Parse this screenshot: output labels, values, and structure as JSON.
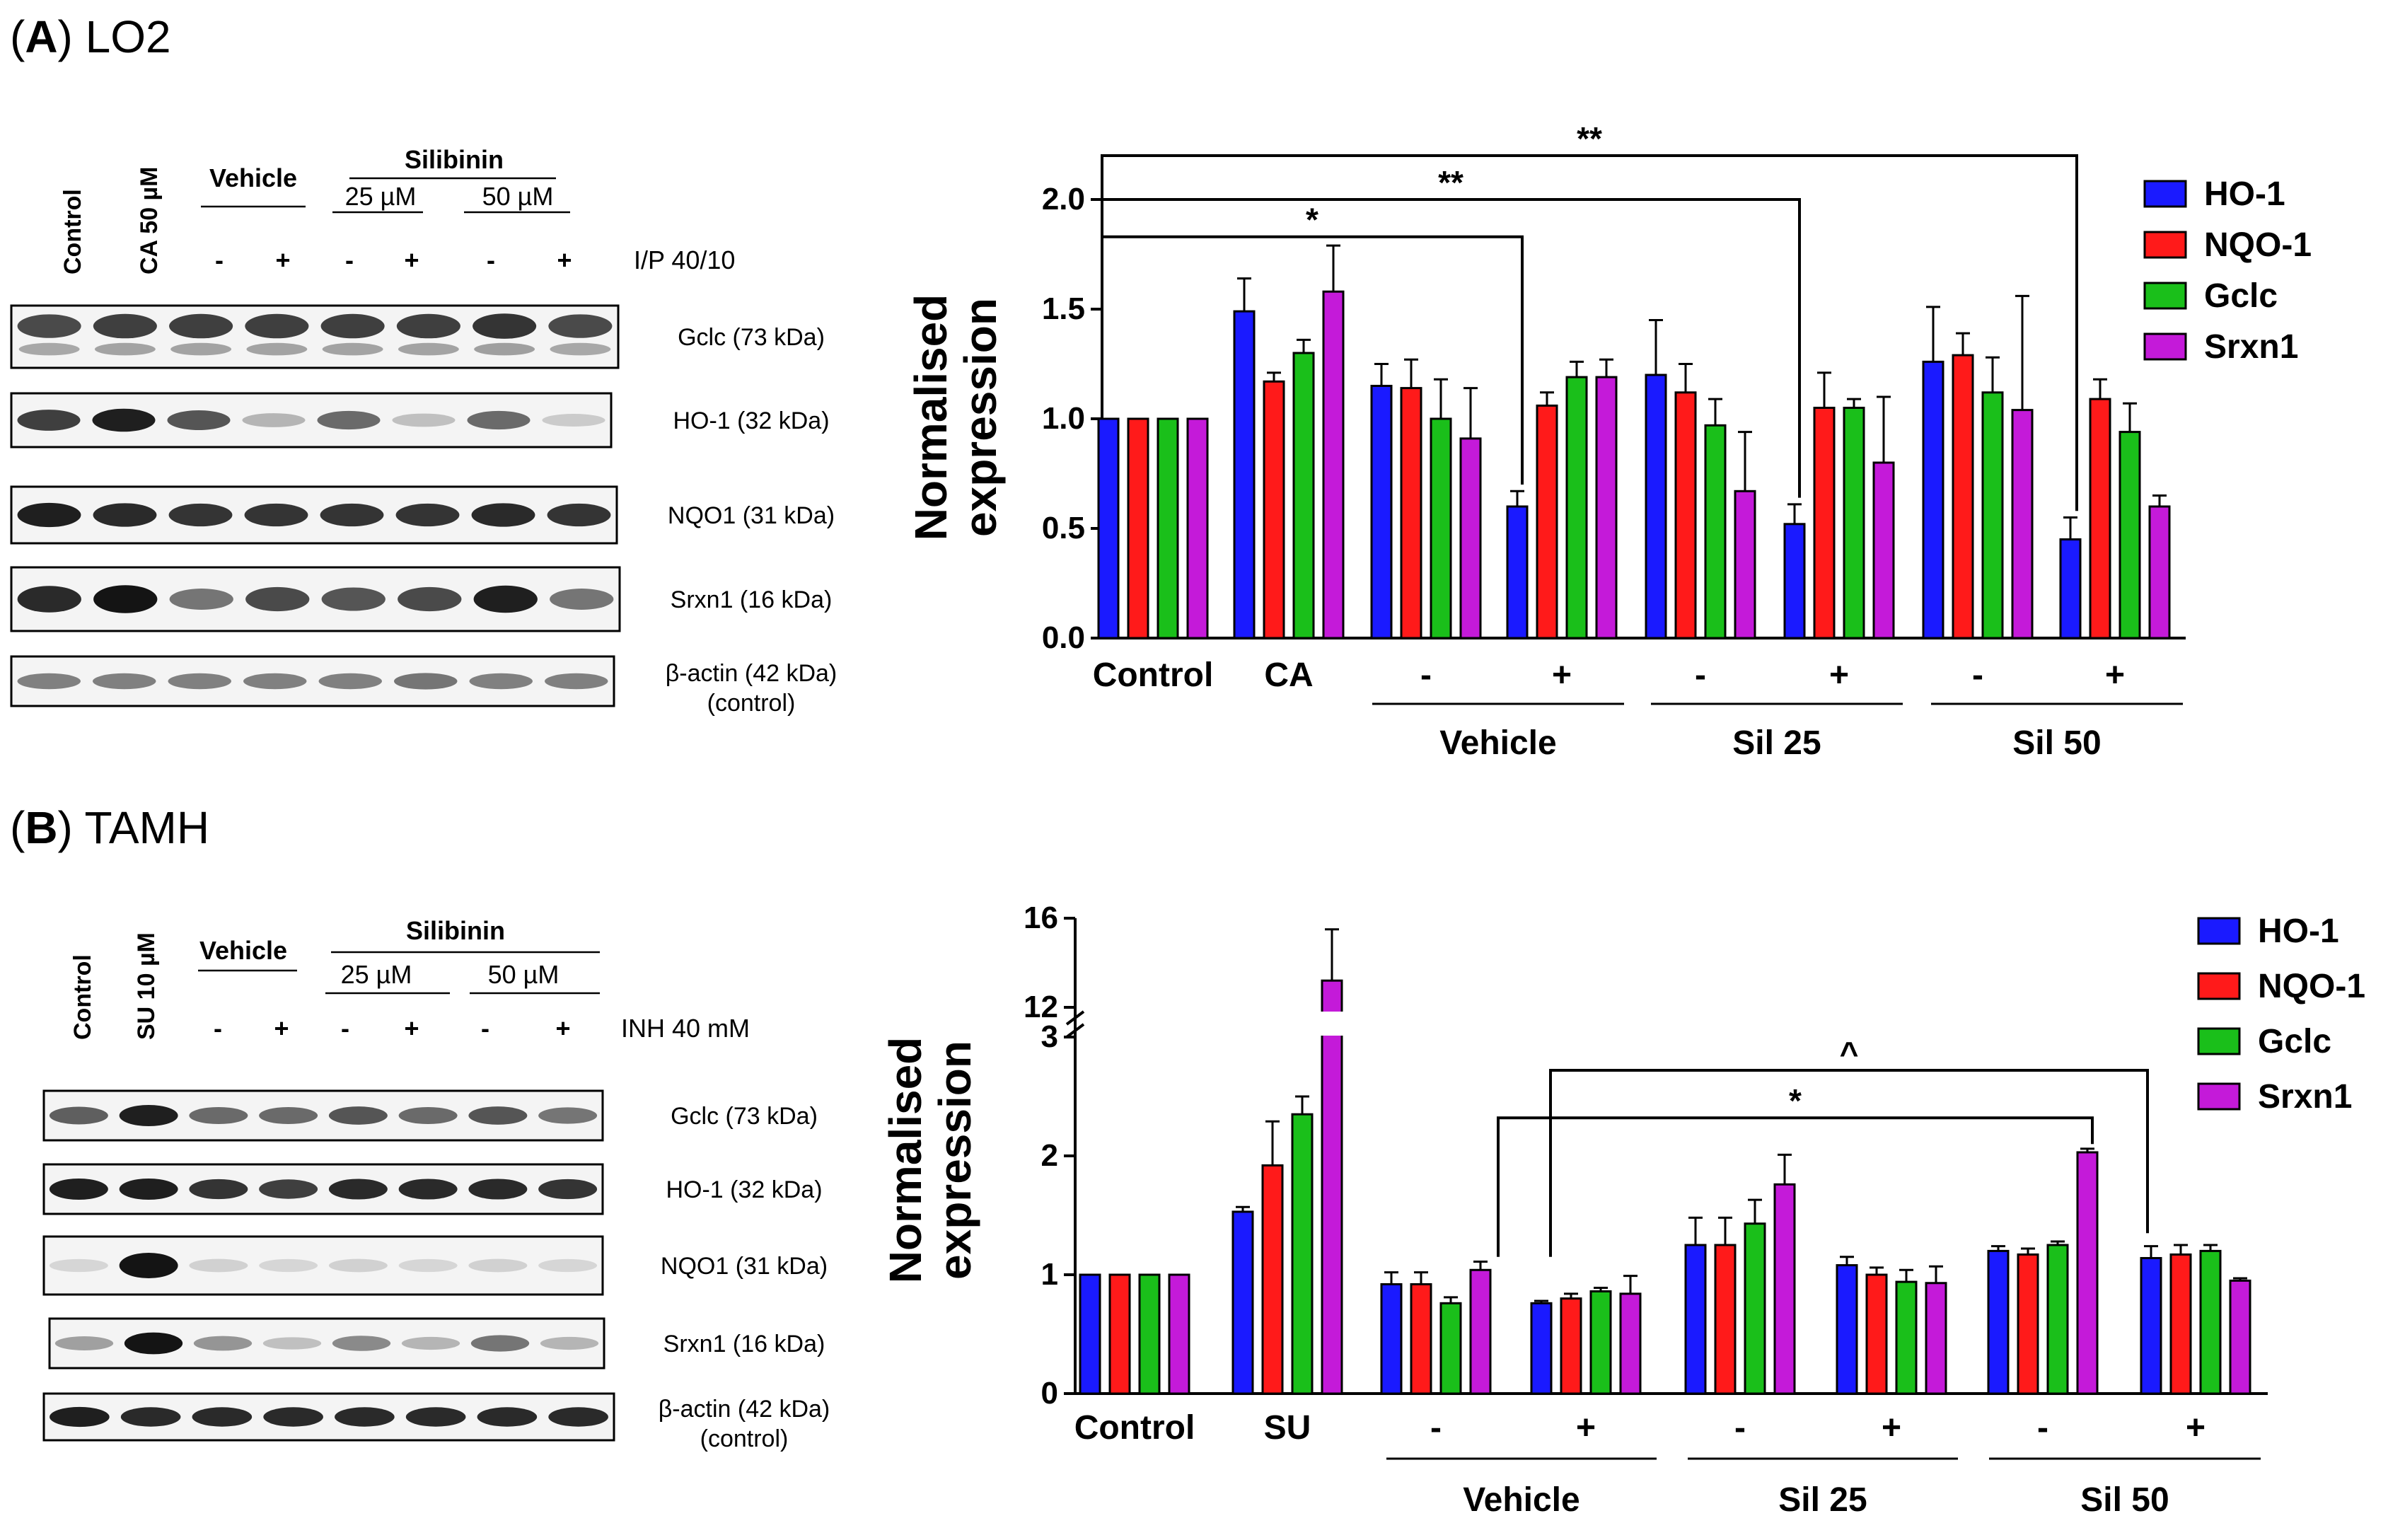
{
  "panels": {
    "a": {
      "letter": "A",
      "cell": "LO2",
      "blot": {
        "lanes": [
          "Control",
          "CA 50 µM"
        ],
        "vehicle": "Vehicle",
        "silibinin": "Silibinin",
        "dose1": "25 µM",
        "dose2": "50 µM",
        "signs": [
          "-",
          "+",
          "-",
          "+",
          "-",
          "+"
        ],
        "treatment": "I/P 40/10",
        "bands": [
          {
            "name": "Gclc (73 kDa)",
            "intensity": [
              0.75,
              0.8,
              0.8,
              0.8,
              0.8,
              0.8,
              0.85,
              0.75
            ],
            "sub": "",
            "second": true
          },
          {
            "name": "HO-1 (32 kDa)",
            "intensity": [
              0.8,
              0.95,
              0.7,
              0.25,
              0.6,
              0.2,
              0.6,
              0.15
            ],
            "sub": "",
            "second": false
          },
          {
            "name": "NQO1 (31 kDa)",
            "intensity": [
              0.95,
              0.9,
              0.85,
              0.85,
              0.85,
              0.85,
              0.9,
              0.85
            ],
            "sub": "",
            "second": false
          },
          {
            "name": "Srxn1 (16 kDa)",
            "intensity": [
              0.9,
              1.0,
              0.55,
              0.75,
              0.7,
              0.75,
              0.95,
              0.55
            ],
            "sub": "",
            "second": false
          },
          {
            "name": "β-actin (42 kDa)",
            "intensity": [
              0.5,
              0.5,
              0.5,
              0.5,
              0.5,
              0.55,
              0.5,
              0.5
            ],
            "sub": "(control)",
            "second": false
          }
        ]
      }
    },
    "b": {
      "letter": "B",
      "cell": "TAMH",
      "blot": {
        "lanes": [
          "Control",
          "SU 10 µM"
        ],
        "vehicle": "Vehicle",
        "silibinin": "Silibinin",
        "dose1": "25 µM",
        "dose2": "50 µM",
        "signs": [
          "-",
          "+",
          "-",
          "+",
          "-",
          "+"
        ],
        "treatment": "INH 40 mM",
        "bands": [
          {
            "name": "Gclc (73 kDa)",
            "intensity": [
              0.65,
              0.95,
              0.6,
              0.6,
              0.7,
              0.6,
              0.7,
              0.55
            ],
            "sub": "",
            "second": false
          },
          {
            "name": "HO-1 (32 kDa)",
            "intensity": [
              0.95,
              0.95,
              0.85,
              0.8,
              0.9,
              0.9,
              0.9,
              0.85
            ],
            "sub": "",
            "second": false
          },
          {
            "name": "NQO1 (31 kDa)",
            "intensity": [
              0.1,
              1.0,
              0.12,
              0.1,
              0.12,
              0.1,
              0.12,
              0.1
            ],
            "sub": "",
            "second": false
          },
          {
            "name": "Srxn1 (16 kDa)",
            "intensity": [
              0.35,
              1.0,
              0.4,
              0.2,
              0.45,
              0.25,
              0.55,
              0.25
            ],
            "sub": "",
            "second": false
          },
          {
            "name": "β-actin (42 kDa)",
            "intensity": [
              0.95,
              0.9,
              0.9,
              0.9,
              0.9,
              0.9,
              0.9,
              0.9
            ],
            "sub": "(control)",
            "second": false
          }
        ]
      }
    }
  },
  "chart_data": [
    {
      "type": "bar",
      "title": "(A) LO2",
      "xlabel": "",
      "ylabel": "Normalised expression",
      "ylim": [
        0,
        2.0
      ],
      "yticks": [
        "0.0",
        "0.5",
        "1.0",
        "1.5",
        "2.0"
      ],
      "categories": [
        "Control",
        "CA",
        "-",
        "+",
        "-",
        "+",
        "-",
        "+"
      ],
      "groups": [
        "Vehicle",
        "Sil 25",
        "Sil 50"
      ],
      "series": [
        {
          "name": "HO-1",
          "color": "#1a1aff",
          "values": [
            1.0,
            1.49,
            1.15,
            0.6,
            1.2,
            0.52,
            1.26,
            0.45
          ],
          "errors": [
            0,
            0.15,
            0.1,
            0.07,
            0.25,
            0.09,
            0.25,
            0.1
          ]
        },
        {
          "name": "NQO-1",
          "color": "#ff1a1a",
          "values": [
            1.0,
            1.17,
            1.14,
            1.06,
            1.12,
            1.05,
            1.29,
            1.09
          ],
          "errors": [
            0,
            0.04,
            0.13,
            0.06,
            0.13,
            0.16,
            0.1,
            0.09
          ]
        },
        {
          "name": "Gclc",
          "color": "#1abf1a",
          "values": [
            1.0,
            1.3,
            1.0,
            1.19,
            0.97,
            1.05,
            1.12,
            0.94
          ],
          "errors": [
            0,
            0.06,
            0.18,
            0.07,
            0.12,
            0.04,
            0.16,
            0.13
          ]
        },
        {
          "name": "Srxn1",
          "color": "#c41ad9",
          "values": [
            1.0,
            1.58,
            0.91,
            1.19,
            0.67,
            0.8,
            1.04,
            0.6
          ],
          "errors": [
            0,
            0.21,
            0.23,
            0.08,
            0.27,
            0.3,
            0.52,
            0.05
          ]
        }
      ],
      "annotations": [
        "*",
        "**",
        "**"
      ]
    },
    {
      "type": "bar",
      "title": "(B) TAMH",
      "xlabel": "",
      "ylabel": "Normalised expression",
      "ylim": [
        0,
        3
      ],
      "break": [
        3,
        12
      ],
      "upper_ylim": [
        12,
        16
      ],
      "yticks": [
        "0",
        "1",
        "2",
        "3",
        "12",
        "16"
      ],
      "categories": [
        "Control",
        "SU",
        "-",
        "+",
        "-",
        "+",
        "-",
        "+"
      ],
      "groups": [
        "Vehicle",
        "Sil 25",
        "Sil 50"
      ],
      "series": [
        {
          "name": "HO-1",
          "color": "#1a1aff",
          "values": [
            1.0,
            1.53,
            0.92,
            0.76,
            1.25,
            1.08,
            1.2,
            1.14
          ],
          "errors": [
            0,
            0.04,
            0.1,
            0.02,
            0.23,
            0.07,
            0.04,
            0.1
          ]
        },
        {
          "name": "NQO-1",
          "color": "#ff1a1a",
          "values": [
            1.0,
            1.92,
            0.92,
            0.8,
            1.25,
            1.0,
            1.17,
            1.17
          ],
          "errors": [
            0,
            0.37,
            0.1,
            0.04,
            0.23,
            0.06,
            0.05,
            0.08
          ]
        },
        {
          "name": "Gclc",
          "color": "#1abf1a",
          "values": [
            1.0,
            2.35,
            0.76,
            0.86,
            1.43,
            0.94,
            1.25,
            1.2
          ],
          "errors": [
            0,
            0.15,
            0.05,
            0.03,
            0.2,
            0.1,
            0.03,
            0.05
          ]
        },
        {
          "name": "Srxn1",
          "color": "#c41ad9",
          "values": [
            1.0,
            13.2,
            1.04,
            0.84,
            1.76,
            0.93,
            2.03,
            0.95
          ],
          "errors": [
            0,
            2.3,
            0.07,
            0.15,
            0.25,
            0.14,
            0.03,
            0.02
          ]
        }
      ],
      "annotations": [
        "^",
        "*"
      ]
    }
  ]
}
